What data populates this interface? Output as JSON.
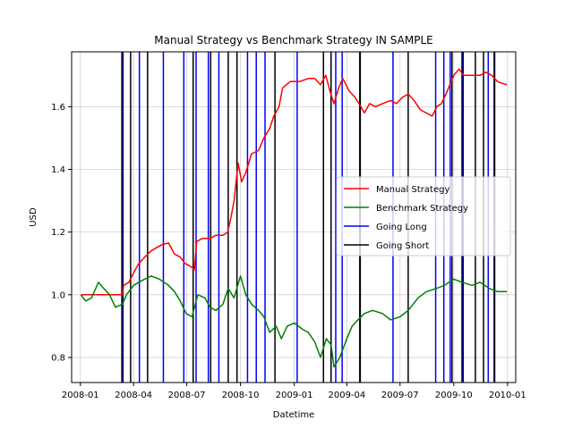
{
  "chart_data": {
    "type": "line",
    "title": "Manual Strategy vs Benchmark Strategy IN SAMPLE",
    "xlabel": "Datetime",
    "ylabel": "USD",
    "xlim": [
      "2007-12-17",
      "2010-01-15"
    ],
    "ylim": [
      0.72,
      1.775
    ],
    "xticks": [
      {
        "date": "2008-01-01",
        "label": "2008-01"
      },
      {
        "date": "2008-04-01",
        "label": "2008-04"
      },
      {
        "date": "2008-07-01",
        "label": "2008-07"
      },
      {
        "date": "2008-10-01",
        "label": "2008-10"
      },
      {
        "date": "2009-01-01",
        "label": "2009-01"
      },
      {
        "date": "2009-04-01",
        "label": "2009-04"
      },
      {
        "date": "2009-07-01",
        "label": "2009-07"
      },
      {
        "date": "2009-10-01",
        "label": "2009-10"
      },
      {
        "date": "2010-01-01",
        "label": "2010-01"
      }
    ],
    "yticks": [
      0.8,
      1.0,
      1.2,
      1.4,
      1.6
    ],
    "ytick_labels": [
      "0.8",
      "1.0",
      "1.2",
      "1.4",
      "1.6"
    ],
    "grid": true,
    "legend_position": "center-right",
    "series": [
      {
        "name": "Manual Strategy",
        "color": "#ff0000",
        "points": [
          [
            "2008-01-02",
            1.0
          ],
          [
            "2008-02-01",
            1.0
          ],
          [
            "2008-03-03",
            1.0
          ],
          [
            "2008-03-13",
            1.0
          ],
          [
            "2008-03-15",
            1.03
          ],
          [
            "2008-03-24",
            1.04
          ],
          [
            "2008-04-01",
            1.07
          ],
          [
            "2008-04-10",
            1.1
          ],
          [
            "2008-04-20",
            1.12
          ],
          [
            "2008-05-01",
            1.14
          ],
          [
            "2008-05-10",
            1.15
          ],
          [
            "2008-05-20",
            1.16
          ],
          [
            "2008-05-31",
            1.165
          ],
          [
            "2008-06-10",
            1.13
          ],
          [
            "2008-06-20",
            1.12
          ],
          [
            "2008-06-28",
            1.1
          ],
          [
            "2008-07-08",
            1.09
          ],
          [
            "2008-07-14",
            1.08
          ],
          [
            "2008-07-18",
            1.17
          ],
          [
            "2008-07-28",
            1.18
          ],
          [
            "2008-08-10",
            1.18
          ],
          [
            "2008-08-20",
            1.19
          ],
          [
            "2008-09-01",
            1.19
          ],
          [
            "2008-09-09",
            1.2
          ],
          [
            "2008-09-15",
            1.25
          ],
          [
            "2008-09-20",
            1.3
          ],
          [
            "2008-09-27",
            1.42
          ],
          [
            "2008-10-03",
            1.36
          ],
          [
            "2008-10-10",
            1.39
          ],
          [
            "2008-10-20",
            1.45
          ],
          [
            "2008-11-01",
            1.46
          ],
          [
            "2008-11-10",
            1.5
          ],
          [
            "2008-11-20",
            1.53
          ],
          [
            "2008-11-27",
            1.57
          ],
          [
            "2008-12-06",
            1.6
          ],
          [
            "2008-12-12",
            1.66
          ],
          [
            "2008-12-25",
            1.68
          ],
          [
            "2009-01-10",
            1.68
          ],
          [
            "2009-01-25",
            1.69
          ],
          [
            "2009-02-05",
            1.69
          ],
          [
            "2009-02-15",
            1.67
          ],
          [
            "2009-02-24",
            1.7
          ],
          [
            "2009-03-03",
            1.65
          ],
          [
            "2009-03-10",
            1.61
          ],
          [
            "2009-03-18",
            1.66
          ],
          [
            "2009-03-25",
            1.69
          ],
          [
            "2009-04-05",
            1.65
          ],
          [
            "2009-04-15",
            1.63
          ],
          [
            "2009-04-25",
            1.6
          ],
          [
            "2009-05-01",
            1.58
          ],
          [
            "2009-05-10",
            1.61
          ],
          [
            "2009-05-20",
            1.6
          ],
          [
            "2009-06-01",
            1.61
          ],
          [
            "2009-06-15",
            1.62
          ],
          [
            "2009-06-25",
            1.61
          ],
          [
            "2009-07-05",
            1.63
          ],
          [
            "2009-07-15",
            1.64
          ],
          [
            "2009-07-25",
            1.62
          ],
          [
            "2009-08-05",
            1.59
          ],
          [
            "2009-08-15",
            1.58
          ],
          [
            "2009-08-25",
            1.57
          ],
          [
            "2009-09-02",
            1.6
          ],
          [
            "2009-09-10",
            1.61
          ],
          [
            "2009-09-20",
            1.65
          ],
          [
            "2009-10-01",
            1.7
          ],
          [
            "2009-10-10",
            1.72
          ],
          [
            "2009-10-18",
            1.7
          ],
          [
            "2009-11-01",
            1.7
          ],
          [
            "2009-11-15",
            1.7
          ],
          [
            "2009-11-25",
            1.71
          ],
          [
            "2009-12-05",
            1.7
          ],
          [
            "2009-12-15",
            1.68
          ],
          [
            "2009-12-22",
            1.675
          ],
          [
            "2009-12-31",
            1.67
          ]
        ]
      },
      {
        "name": "Benchmark Strategy",
        "color": "#008000",
        "points": [
          [
            "2008-01-02",
            1.0
          ],
          [
            "2008-01-10",
            0.98
          ],
          [
            "2008-01-20",
            0.99
          ],
          [
            "2008-02-01",
            1.04
          ],
          [
            "2008-02-10",
            1.02
          ],
          [
            "2008-02-20",
            1.0
          ],
          [
            "2008-03-01",
            0.96
          ],
          [
            "2008-03-13",
            0.97
          ],
          [
            "2008-03-20",
            1.0
          ],
          [
            "2008-04-01",
            1.03
          ],
          [
            "2008-04-10",
            1.04
          ],
          [
            "2008-04-20",
            1.05
          ],
          [
            "2008-05-01",
            1.06
          ],
          [
            "2008-05-15",
            1.05
          ],
          [
            "2008-05-31",
            1.03
          ],
          [
            "2008-06-10",
            1.01
          ],
          [
            "2008-06-20",
            0.98
          ],
          [
            "2008-06-30",
            0.94
          ],
          [
            "2008-07-10",
            0.93
          ],
          [
            "2008-07-20",
            1.0
          ],
          [
            "2008-08-01",
            0.99
          ],
          [
            "2008-08-10",
            0.96
          ],
          [
            "2008-08-20",
            0.95
          ],
          [
            "2008-09-01",
            0.97
          ],
          [
            "2008-09-10",
            1.02
          ],
          [
            "2008-09-20",
            0.99
          ],
          [
            "2008-10-01",
            1.06
          ],
          [
            "2008-10-10",
            1.0
          ],
          [
            "2008-10-20",
            0.97
          ],
          [
            "2008-11-01",
            0.95
          ],
          [
            "2008-11-10",
            0.93
          ],
          [
            "2008-11-20",
            0.88
          ],
          [
            "2008-12-01",
            0.9
          ],
          [
            "2008-12-10",
            0.86
          ],
          [
            "2008-12-20",
            0.9
          ],
          [
            "2009-01-01",
            0.91
          ],
          [
            "2009-01-15",
            0.89
          ],
          [
            "2009-01-25",
            0.88
          ],
          [
            "2009-02-05",
            0.85
          ],
          [
            "2009-02-15",
            0.8
          ],
          [
            "2009-02-25",
            0.86
          ],
          [
            "2009-03-05",
            0.84
          ],
          [
            "2009-03-10",
            0.77
          ],
          [
            "2009-03-20",
            0.8
          ],
          [
            "2009-04-01",
            0.86
          ],
          [
            "2009-04-10",
            0.9
          ],
          [
            "2009-04-20",
            0.92
          ],
          [
            "2009-05-01",
            0.94
          ],
          [
            "2009-05-15",
            0.95
          ],
          [
            "2009-06-01",
            0.94
          ],
          [
            "2009-06-15",
            0.92
          ],
          [
            "2009-07-01",
            0.93
          ],
          [
            "2009-07-15",
            0.95
          ],
          [
            "2009-08-01",
            0.99
          ],
          [
            "2009-08-15",
            1.01
          ],
          [
            "2009-09-01",
            1.02
          ],
          [
            "2009-09-15",
            1.03
          ],
          [
            "2009-10-01",
            1.05
          ],
          [
            "2009-10-15",
            1.04
          ],
          [
            "2009-11-01",
            1.03
          ],
          [
            "2009-11-15",
            1.04
          ],
          [
            "2009-12-01",
            1.02
          ],
          [
            "2009-12-15",
            1.01
          ],
          [
            "2009-12-31",
            1.01
          ]
        ]
      }
    ],
    "vlines": [
      {
        "name": "Going Long",
        "color": "#0000ff",
        "dates": [
          "2008-03-14",
          "2008-04-11",
          "2008-05-22",
          "2008-06-26",
          "2008-07-17",
          "2008-08-07",
          "2008-08-25",
          "2008-10-13",
          "2008-10-28",
          "2008-11-12",
          "2009-01-06",
          "2009-03-13",
          "2009-03-24",
          "2009-04-23",
          "2009-06-19",
          "2009-08-31",
          "2009-09-14",
          "2009-09-25",
          "2009-10-15",
          "2009-11-29",
          "2009-12-09"
        ]
      },
      {
        "name": "Going Short",
        "color": "#000000",
        "dates": [
          "2008-03-12",
          "2008-03-27",
          "2008-04-25",
          "2008-07-12",
          "2008-08-11",
          "2008-09-10",
          "2008-09-25",
          "2008-11-29",
          "2009-02-20",
          "2009-03-05",
          "2009-04-24",
          "2009-07-15",
          "2009-09-28",
          "2009-10-17",
          "2009-11-07",
          "2009-11-21",
          "2009-12-10"
        ]
      }
    ],
    "legend": [
      {
        "label": "Manual Strategy",
        "color": "#ff0000"
      },
      {
        "label": "Benchmark Strategy",
        "color": "#008000"
      },
      {
        "label": "Going Long",
        "color": "#0000ff"
      },
      {
        "label": "Going Short",
        "color": "#000000"
      }
    ]
  }
}
